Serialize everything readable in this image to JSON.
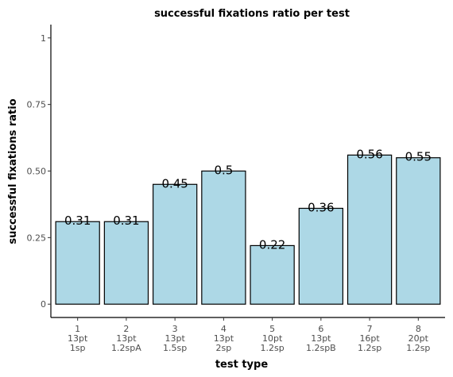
{
  "chart_data": {
    "type": "bar",
    "title": "successful fixations ratio per test",
    "xlabel": "test type",
    "ylabel": "successful fixations ratio",
    "categories": [
      [
        "1",
        "13pt",
        "1sp"
      ],
      [
        "2",
        "13pt",
        "1.2spA"
      ],
      [
        "3",
        "13pt",
        "1.5sp"
      ],
      [
        "4",
        "13pt",
        "2sp"
      ],
      [
        "5",
        "10pt",
        "1.2sp"
      ],
      [
        "6",
        "13pt",
        "1.2spB"
      ],
      [
        "7",
        "16pt",
        "1.2sp"
      ],
      [
        "8",
        "20pt",
        "1.2sp"
      ]
    ],
    "values": [
      0.31,
      0.31,
      0.45,
      0.5,
      0.22,
      0.36,
      0.56,
      0.55
    ],
    "value_labels": [
      "0.31",
      "0.31",
      "0.45",
      "0.5",
      "0.22",
      "0.36",
      "0.56",
      "0.55"
    ],
    "ylim": [
      -0.05,
      1.05
    ],
    "yticks": [
      0,
      0.25,
      0.5,
      0.75,
      1
    ],
    "ytick_labels": [
      "0",
      "0.25",
      "0.50",
      "0.75",
      "1"
    ],
    "grid": false,
    "bar_color": "#add8e6",
    "bar_edge_color": "#000000"
  }
}
